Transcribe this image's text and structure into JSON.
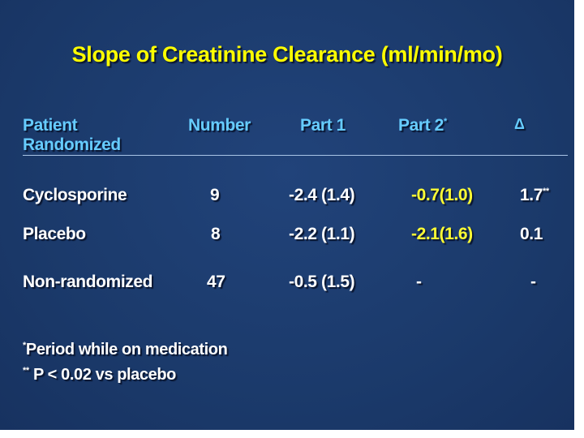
{
  "title": "Slope of Creatinine Clearance (ml/min/mo)",
  "header": {
    "patient_line1": "Patient",
    "patient_line2": "Randomized",
    "number": "Number",
    "part1": "Part 1",
    "part2": "Part 2",
    "part2_mark": "*",
    "delta": "Δ"
  },
  "rows": [
    {
      "label": "Cyclosporine",
      "number": "9",
      "part1": "-2.4 (1.4)",
      "part2": "-0.7(1.0)",
      "delta": "1.7",
      "delta_mark": "**"
    },
    {
      "label": "Placebo",
      "number": "8",
      "part1": "-2.2 (1.1)",
      "part2": "-2.1(1.6)",
      "delta": "0.1",
      "delta_mark": ""
    },
    {
      "label": "Non-randomized",
      "number": "47",
      "part1": "-0.5 (1.5)",
      "part2": "-",
      "delta": "-",
      "delta_mark": ""
    }
  ],
  "footnotes": [
    {
      "mark": "*",
      "text": "Period while on medication"
    },
    {
      "mark": "**",
      "text": "P < 0.02 vs placebo"
    }
  ],
  "colors": {
    "background": "#1b3a6b",
    "title": "#ffff00",
    "header": "#66ccff",
    "body_text": "#ffffff",
    "part2_values": "#ffff33"
  }
}
